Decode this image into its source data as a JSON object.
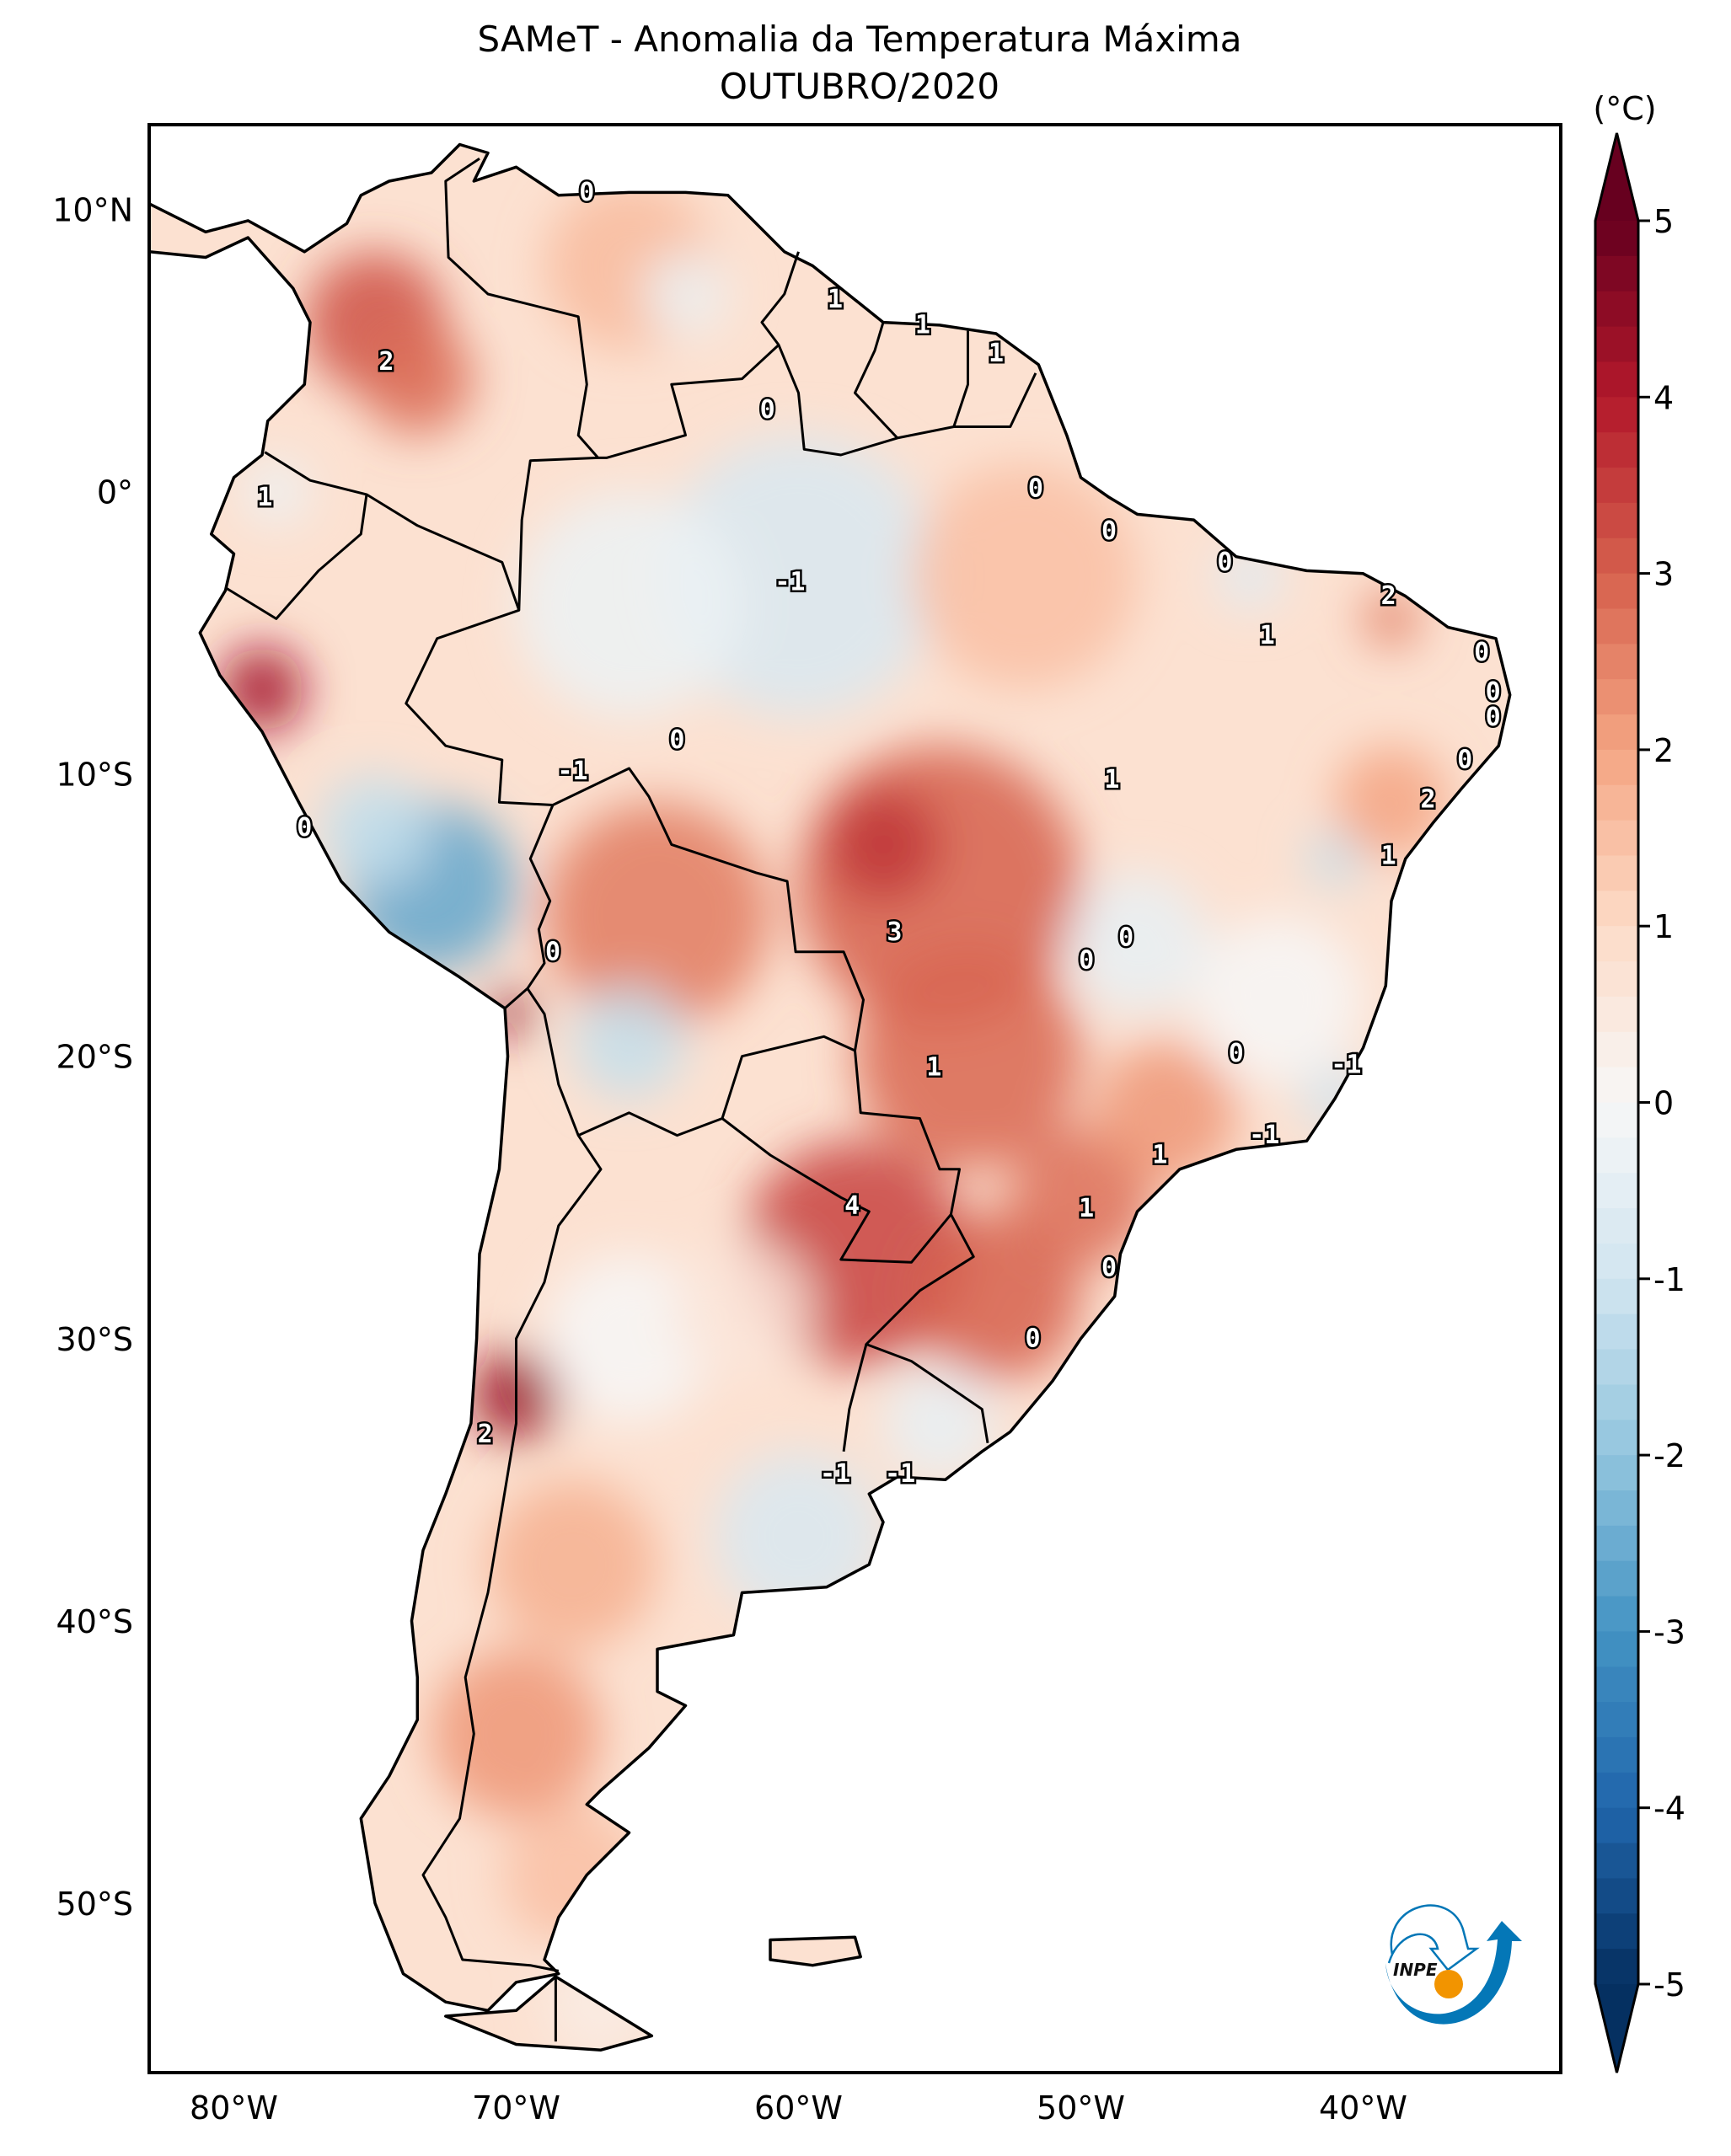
{
  "title": "SAMeT - Anomalia da Temperatura Máxima",
  "subtitle": "OUTUBRO/2020",
  "logo_text": "INPE",
  "chart_data": {
    "type": "heatmap",
    "map_region": "South America",
    "lon_range": [
      -83,
      -33
    ],
    "lat_range": [
      -56,
      13
    ],
    "x_ticks": [
      {
        "value": -80,
        "label": "80°W"
      },
      {
        "value": -70,
        "label": "70°W"
      },
      {
        "value": -60,
        "label": "60°W"
      },
      {
        "value": -50,
        "label": "50°W"
      },
      {
        "value": -40,
        "label": "40°W"
      }
    ],
    "y_ticks": [
      {
        "value": 10,
        "label": "10°N"
      },
      {
        "value": 0,
        "label": "0°"
      },
      {
        "value": -10,
        "label": "10°S"
      },
      {
        "value": -20,
        "label": "20°S"
      },
      {
        "value": -30,
        "label": "30°S"
      },
      {
        "value": -40,
        "label": "40°S"
      },
      {
        "value": -50,
        "label": "50°S"
      }
    ],
    "colorbar": {
      "label": "(°C)",
      "range": [
        -5,
        5
      ],
      "extend": "both",
      "colormap": "RdBu_r",
      "ticks": [
        {
          "value": 5,
          "label": "5"
        },
        {
          "value": 4,
          "label": "4"
        },
        {
          "value": 3,
          "label": "3"
        },
        {
          "value": 2,
          "label": "2"
        },
        {
          "value": 1,
          "label": "1"
        },
        {
          "value": 0,
          "label": "0"
        },
        {
          "value": -1,
          "label": "-1"
        },
        {
          "value": -2,
          "label": "-2"
        },
        {
          "value": -3,
          "label": "-3"
        },
        {
          "value": -4,
          "label": "-4"
        },
        {
          "value": -5,
          "label": "-5"
        }
      ],
      "colors": [
        "#053061",
        "#2166ac",
        "#4393c3",
        "#92c5de",
        "#d1e5f0",
        "#f7f7f7",
        "#fddbc7",
        "#f4a582",
        "#d6604d",
        "#b2182b",
        "#67001f"
      ]
    },
    "background_anomaly": 0.8,
    "anomaly_hotspots": [
      {
        "lon": -75,
        "lat": 6,
        "value": 3.2,
        "radius": 2.5
      },
      {
        "lon": -73.5,
        "lat": 4,
        "value": 2.8,
        "radius": 2
      },
      {
        "lon": -66,
        "lat": 8,
        "value": 1.6,
        "radius": 3
      },
      {
        "lon": -64,
        "lat": 7,
        "value": -0.3,
        "radius": 1.5
      },
      {
        "lon": -79,
        "lat": -7,
        "value": 4.2,
        "radius": 1.5
      },
      {
        "lon": -78.5,
        "lat": 0,
        "value": -0.3,
        "radius": 1.2
      },
      {
        "lon": -60,
        "lat": -3,
        "value": -0.8,
        "radius": 5
      },
      {
        "lon": -66,
        "lat": -4,
        "value": -0.3,
        "radius": 4
      },
      {
        "lon": -52,
        "lat": -3,
        "value": 1.5,
        "radius": 4
      },
      {
        "lon": -55,
        "lat": -14,
        "value": 3.0,
        "radius": 5
      },
      {
        "lon": -57,
        "lat": -12.5,
        "value": 3.6,
        "radius": 2
      },
      {
        "lon": -65,
        "lat": -15,
        "value": 2.6,
        "radius": 4
      },
      {
        "lon": -73,
        "lat": -14,
        "value": -2.6,
        "radius": 3
      },
      {
        "lon": -75,
        "lat": -12,
        "value": -1.2,
        "radius": 2
      },
      {
        "lon": -66,
        "lat": -19.5,
        "value": -1.2,
        "radius": 2
      },
      {
        "lon": -70.2,
        "lat": -18.5,
        "value": 4.5,
        "radius": 0.8
      },
      {
        "lon": -54,
        "lat": -20,
        "value": 2.9,
        "radius": 4
      },
      {
        "lon": -58,
        "lat": -27,
        "value": 3.4,
        "radius": 4
      },
      {
        "lon": -53,
        "lat": -28.5,
        "value": 3.0,
        "radius": 3
      },
      {
        "lon": -50,
        "lat": -25,
        "value": 2.8,
        "radius": 2.5
      },
      {
        "lon": -47,
        "lat": -22,
        "value": 2.2,
        "radius": 2.5
      },
      {
        "lon": -48,
        "lat": -16,
        "value": -0.4,
        "radius": 2.5
      },
      {
        "lon": -43,
        "lat": -18,
        "value": 0.0,
        "radius": 3
      },
      {
        "lon": -41,
        "lat": -21.5,
        "value": -1.0,
        "radius": 1.2
      },
      {
        "lon": -41,
        "lat": -13,
        "value": -1.2,
        "radius": 1
      },
      {
        "lon": -39,
        "lat": -4.5,
        "value": 2.6,
        "radius": 1
      },
      {
        "lon": -39,
        "lat": -11,
        "value": 2.0,
        "radius": 2
      },
      {
        "lon": -44,
        "lat": -3,
        "value": -0.6,
        "radius": 1.2
      },
      {
        "lon": -70,
        "lat": -32,
        "value": 4.3,
        "radius": 1.6
      },
      {
        "lon": -66,
        "lat": -30,
        "value": 0.0,
        "radius": 3
      },
      {
        "lon": -62,
        "lat": -29,
        "value": 0.6,
        "radius": 2.5
      },
      {
        "lon": -60,
        "lat": -37,
        "value": -0.8,
        "radius": 3
      },
      {
        "lon": -55,
        "lat": -33,
        "value": -0.4,
        "radius": 2
      },
      {
        "lon": -68,
        "lat": -38,
        "value": 1.8,
        "radius": 3
      },
      {
        "lon": -70,
        "lat": -44,
        "value": 2.2,
        "radius": 3
      },
      {
        "lon": -68,
        "lat": -49,
        "value": 1.5,
        "radius": 2.5
      },
      {
        "lon": -67,
        "lat": -53.5,
        "value": 0.4,
        "radius": 2
      }
    ],
    "contour_labels": [
      {
        "text": "0",
        "lon": -67.5,
        "lat": 10.6
      },
      {
        "text": "1",
        "lon": -58.7,
        "lat": 6.8
      },
      {
        "text": "1",
        "lon": -55.6,
        "lat": 5.9
      },
      {
        "text": "1",
        "lon": -53.0,
        "lat": 4.9
      },
      {
        "text": "2",
        "lon": -74.6,
        "lat": 4.6
      },
      {
        "text": "0",
        "lon": -61.1,
        "lat": 2.9
      },
      {
        "text": "1",
        "lon": -78.9,
        "lat": -0.2
      },
      {
        "text": "0",
        "lon": -51.6,
        "lat": 0.1
      },
      {
        "text": "-1",
        "lon": -60.3,
        "lat": -3.2
      },
      {
        "text": "0",
        "lon": -49.0,
        "lat": -1.4
      },
      {
        "text": "0",
        "lon": -44.9,
        "lat": -2.5
      },
      {
        "text": "2",
        "lon": -39.1,
        "lat": -3.7
      },
      {
        "text": "1",
        "lon": -43.4,
        "lat": -5.1
      },
      {
        "text": "0",
        "lon": -35.8,
        "lat": -5.7
      },
      {
        "text": "0",
        "lon": -35.4,
        "lat": -7.1
      },
      {
        "text": "0",
        "lon": -35.4,
        "lat": -8.0
      },
      {
        "text": "0",
        "lon": -64.3,
        "lat": -8.8
      },
      {
        "text": "0",
        "lon": -36.4,
        "lat": -9.5
      },
      {
        "text": "-1",
        "lon": -68.0,
        "lat": -9.9
      },
      {
        "text": "1",
        "lon": -48.9,
        "lat": -10.2
      },
      {
        "text": "2",
        "lon": -37.7,
        "lat": -10.9
      },
      {
        "text": "0",
        "lon": -77.5,
        "lat": -11.9
      },
      {
        "text": "1",
        "lon": -39.1,
        "lat": -12.9
      },
      {
        "text": "3",
        "lon": -56.6,
        "lat": -15.6
      },
      {
        "text": "0",
        "lon": -48.4,
        "lat": -15.8
      },
      {
        "text": "0",
        "lon": -49.8,
        "lat": -16.6
      },
      {
        "text": "0",
        "lon": -68.7,
        "lat": -16.3
      },
      {
        "text": "1",
        "lon": -55.2,
        "lat": -20.4
      },
      {
        "text": "0",
        "lon": -44.5,
        "lat": -19.9
      },
      {
        "text": "-1",
        "lon": -40.6,
        "lat": -20.3
      },
      {
        "text": "1",
        "lon": -47.2,
        "lat": -23.5
      },
      {
        "text": "-1",
        "lon": -43.5,
        "lat": -22.8
      },
      {
        "text": "4",
        "lon": -58.1,
        "lat": -25.3
      },
      {
        "text": "1",
        "lon": -49.8,
        "lat": -25.4
      },
      {
        "text": "0",
        "lon": -49.0,
        "lat": -27.5
      },
      {
        "text": "0",
        "lon": -51.7,
        "lat": -30.0
      },
      {
        "text": "2",
        "lon": -71.1,
        "lat": -33.4
      },
      {
        "text": "-1",
        "lon": -58.7,
        "lat": -34.8
      },
      {
        "text": "-1",
        "lon": -56.4,
        "lat": -34.8
      }
    ]
  }
}
